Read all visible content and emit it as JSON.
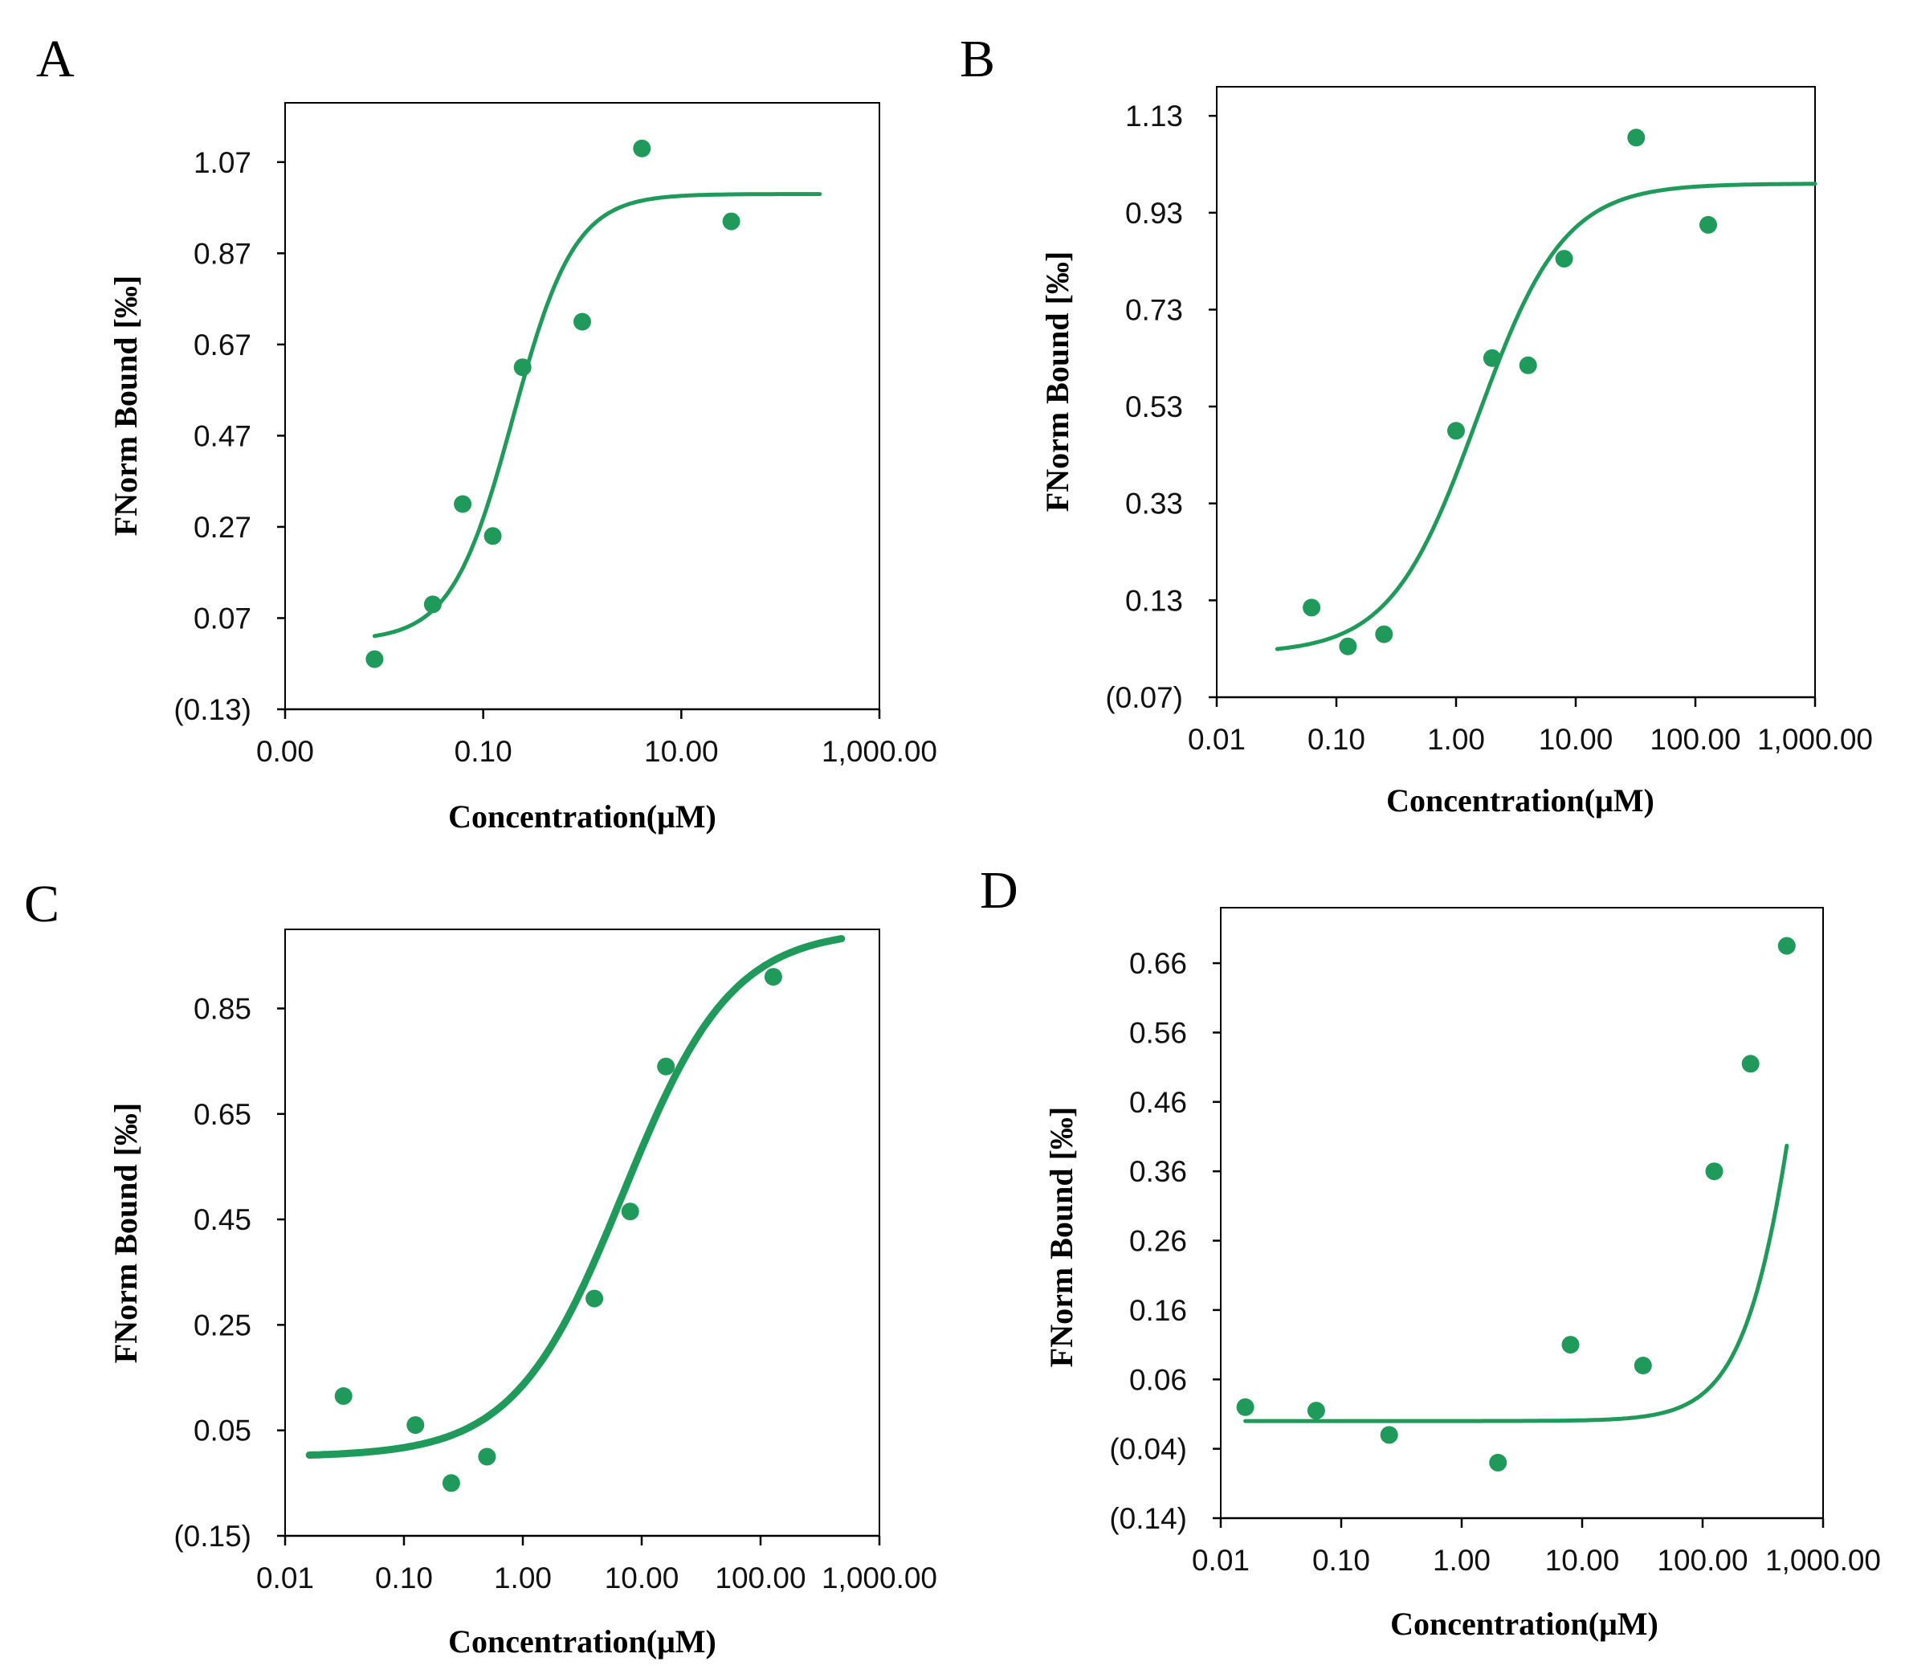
{
  "colors": {
    "series": "#1f9a5a"
  },
  "icon": "dose-response-chart",
  "chart_data": [
    {
      "panel": "A",
      "type": "scatter",
      "xscale": "log",
      "xlabel": "Concentration(μM)",
      "ylabel": "FNorm Bound [‰]",
      "xticks": [
        {
          "value": 0.001,
          "label": "0.00"
        },
        {
          "value": 0.1,
          "label": "0.10"
        },
        {
          "value": 10,
          "label": "10.00"
        },
        {
          "value": 1000,
          "label": "1,000.00"
        }
      ],
      "xlim": [
        0.001,
        1000
      ],
      "yticks": [
        {
          "value": -0.13,
          "label": "(0.13)"
        },
        {
          "value": 0.07,
          "label": "0.07"
        },
        {
          "value": 0.27,
          "label": "0.27"
        },
        {
          "value": 0.47,
          "label": "0.47"
        },
        {
          "value": 0.67,
          "label": "0.67"
        },
        {
          "value": 0.87,
          "label": "0.87"
        },
        {
          "value": 1.07,
          "label": "1.07"
        }
      ],
      "ylim": [
        -0.13,
        1.2
      ],
      "points": [
        {
          "x": 0.008,
          "y": -0.02
        },
        {
          "x": 0.031,
          "y": 0.1
        },
        {
          "x": 0.062,
          "y": 0.32
        },
        {
          "x": 0.125,
          "y": 0.25
        },
        {
          "x": 0.25,
          "y": 0.62
        },
        {
          "x": 1.0,
          "y": 0.72
        },
        {
          "x": 4.0,
          "y": 1.1
        },
        {
          "x": 32.0,
          "y": 0.94
        }
      ],
      "fit": {
        "bottom": 0.02,
        "top": 1.0,
        "ec50": 0.2,
        "hill": 1.4,
        "xmin": 0.008,
        "xmax": 250,
        "width": 5
      }
    },
    {
      "panel": "B",
      "type": "scatter",
      "xscale": "log",
      "xlabel": "Concentration(μM)",
      "ylabel": "FNorm Bound [‰]",
      "xticks": [
        {
          "value": 0.01,
          "label": "0.01"
        },
        {
          "value": 0.1,
          "label": "0.10"
        },
        {
          "value": 1,
          "label": "1.00"
        },
        {
          "value": 10,
          "label": "10.00"
        },
        {
          "value": 100,
          "label": "100.00"
        },
        {
          "value": 1000,
          "label": "1,000.00"
        }
      ],
      "xlim": [
        0.01,
        1000
      ],
      "yticks": [
        {
          "value": -0.07,
          "label": "(0.07)"
        },
        {
          "value": 0.13,
          "label": "0.13"
        },
        {
          "value": 0.33,
          "label": "0.33"
        },
        {
          "value": 0.53,
          "label": "0.53"
        },
        {
          "value": 0.73,
          "label": "0.73"
        },
        {
          "value": 0.93,
          "label": "0.93"
        },
        {
          "value": 1.13,
          "label": "1.13"
        }
      ],
      "ylim": [
        -0.07,
        1.19
      ],
      "points": [
        {
          "x": 0.062,
          "y": 0.115
        },
        {
          "x": 0.125,
          "y": 0.035
        },
        {
          "x": 0.25,
          "y": 0.06
        },
        {
          "x": 1.0,
          "y": 0.48
        },
        {
          "x": 2.0,
          "y": 0.63
        },
        {
          "x": 4.0,
          "y": 0.615
        },
        {
          "x": 8.0,
          "y": 0.835
        },
        {
          "x": 32.0,
          "y": 1.085
        },
        {
          "x": 128.0,
          "y": 0.905
        }
      ],
      "fit": {
        "bottom": 0.02,
        "top": 0.99,
        "ec50": 1.5,
        "hill": 1.2,
        "xmin": 0.032,
        "xmax": 1000,
        "width": 5
      }
    },
    {
      "panel": "C",
      "type": "scatter",
      "xscale": "log",
      "xlabel": "Concentration(μM)",
      "ylabel": "FNorm Bound [‰]",
      "xticks": [
        {
          "value": 0.01,
          "label": "0.01"
        },
        {
          "value": 0.1,
          "label": "0.10"
        },
        {
          "value": 1,
          "label": "1.00"
        },
        {
          "value": 10,
          "label": "10.00"
        },
        {
          "value": 100,
          "label": "100.00"
        },
        {
          "value": 1000,
          "label": "1,000.00"
        }
      ],
      "xlim": [
        0.01,
        1000
      ],
      "yticks": [
        {
          "value": -0.15,
          "label": "(0.15)"
        },
        {
          "value": 0.05,
          "label": "0.05"
        },
        {
          "value": 0.25,
          "label": "0.25"
        },
        {
          "value": 0.45,
          "label": "0.45"
        },
        {
          "value": 0.65,
          "label": "0.65"
        },
        {
          "value": 0.85,
          "label": "0.85"
        }
      ],
      "ylim": [
        -0.15,
        1.0
      ],
      "points": [
        {
          "x": 0.031,
          "y": 0.115
        },
        {
          "x": 0.125,
          "y": 0.06
        },
        {
          "x": 0.25,
          "y": -0.05
        },
        {
          "x": 0.5,
          "y": 0.0
        },
        {
          "x": 4.0,
          "y": 0.3
        },
        {
          "x": 8.0,
          "y": 0.465
        },
        {
          "x": 16.0,
          "y": 0.74
        },
        {
          "x": 128.0,
          "y": 0.91
        }
      ],
      "fit": {
        "bottom": 0.0,
        "top": 1.0,
        "ec50": 7.0,
        "hill": 0.95,
        "xmin": 0.016,
        "xmax": 480,
        "width": 9
      }
    },
    {
      "panel": "D",
      "type": "scatter",
      "xscale": "log",
      "xlabel": "Concentration(μM)",
      "ylabel": "FNorm Bound [‰]",
      "xticks": [
        {
          "value": 0.01,
          "label": "0.01"
        },
        {
          "value": 0.1,
          "label": "0.10"
        },
        {
          "value": 1,
          "label": "1.00"
        },
        {
          "value": 10,
          "label": "10.00"
        },
        {
          "value": 100,
          "label": "100.00"
        },
        {
          "value": 1000,
          "label": "1,000.00"
        }
      ],
      "xlim": [
        0.01,
        1000
      ],
      "yticks": [
        {
          "value": -0.14,
          "label": "(0.14)"
        },
        {
          "value": -0.04,
          "label": "(0.04)"
        },
        {
          "value": 0.06,
          "label": "0.06"
        },
        {
          "value": 0.16,
          "label": "0.16"
        },
        {
          "value": 0.26,
          "label": "0.26"
        },
        {
          "value": 0.36,
          "label": "0.36"
        },
        {
          "value": 0.46,
          "label": "0.46"
        },
        {
          "value": 0.56,
          "label": "0.56"
        },
        {
          "value": 0.66,
          "label": "0.66"
        }
      ],
      "ylim": [
        -0.14,
        0.74
      ],
      "points": [
        {
          "x": 0.016,
          "y": 0.02
        },
        {
          "x": 0.062,
          "y": 0.015
        },
        {
          "x": 0.25,
          "y": -0.02
        },
        {
          "x": 2.0,
          "y": -0.06
        },
        {
          "x": 8.0,
          "y": 0.11
        },
        {
          "x": 32.0,
          "y": 0.08
        },
        {
          "x": 125.0,
          "y": 0.36
        },
        {
          "x": 250.0,
          "y": 0.515
        },
        {
          "x": 500.0,
          "y": 0.685
        }
      ],
      "fit": {
        "bottom": 0.0,
        "top": 1.6,
        "ec50": 1000,
        "hill": 1.6,
        "xmin": 0.016,
        "xmax": 500,
        "width": 5
      }
    }
  ]
}
